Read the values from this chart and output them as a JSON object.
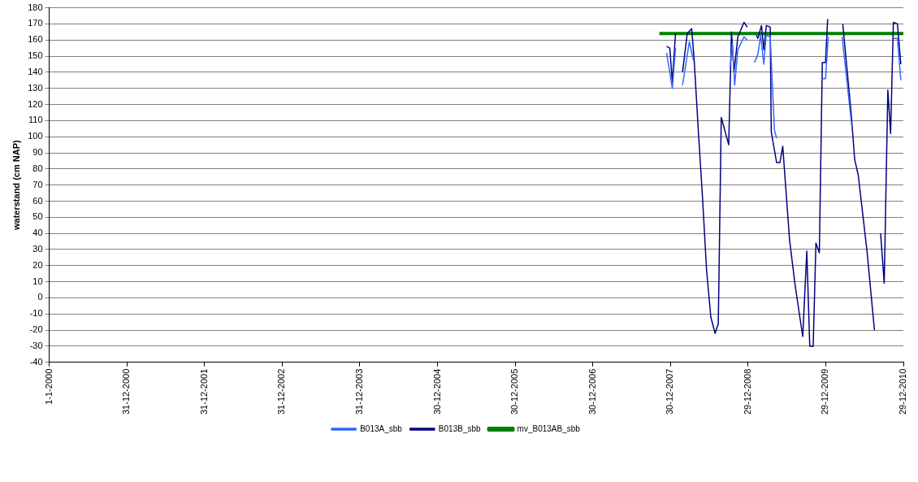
{
  "chart_data": {
    "type": "line",
    "ylabel": "waterstand (cm NAP)",
    "xlim": [
      "2000-01-01",
      "2010-12-29"
    ],
    "xticks": [
      {
        "value": "2000-01-01",
        "label": "1-1-2000"
      },
      {
        "value": "2000-12-31",
        "label": "31-12-2000"
      },
      {
        "value": "2001-12-31",
        "label": "31-12-2001"
      },
      {
        "value": "2002-12-31",
        "label": "31-12-2002"
      },
      {
        "value": "2003-12-31",
        "label": "31-12-2003"
      },
      {
        "value": "2004-12-30",
        "label": "30-12-2004"
      },
      {
        "value": "2005-12-30",
        "label": "30-12-2005"
      },
      {
        "value": "2006-12-30",
        "label": "30-12-2006"
      },
      {
        "value": "2007-12-30",
        "label": "30-12-2007"
      },
      {
        "value": "2008-12-29",
        "label": "29-12-2008"
      },
      {
        "value": "2009-12-29",
        "label": "29-12-2009"
      },
      {
        "value": "2010-12-29",
        "label": "29-12-2010"
      }
    ],
    "ylim": [
      -40,
      180
    ],
    "yticks": [
      -40,
      -30,
      -20,
      -10,
      0,
      10,
      20,
      30,
      40,
      50,
      60,
      70,
      80,
      90,
      100,
      110,
      120,
      130,
      140,
      150,
      160,
      170,
      180
    ],
    "grid": "y",
    "legend": "bottom",
    "marker": "none",
    "series": [
      {
        "name": "B013A_sbb",
        "color": "#3366ff",
        "x": [
          "2007-12-12",
          "2008-01-08",
          "2008-01-23",
          "2008-02-10",
          "2008-02-25",
          "2008-03-28",
          "2008-04-17",
          "2008-07-01",
          "2008-10-06",
          "2008-10-16",
          "2008-10-27",
          "2008-11-11",
          "2008-12-10",
          "2008-12-25",
          "2009-01-15",
          "2009-01-28",
          "2009-02-13",
          "2009-02-26",
          "2009-03-13",
          "2009-03-24",
          "2009-04-12",
          "2009-05-02",
          "2009-05-12",
          "2009-08-01",
          "2009-12-13",
          "2009-12-28",
          "2010-01-10",
          "2010-02-15",
          "2010-03-16",
          "2010-05-01",
          "2010-08-01",
          "2010-11-12",
          "2010-12-01",
          "2010-12-17"
        ],
        "values": [
          152,
          130,
          155,
          null,
          132,
          159,
          147,
          null,
          143,
          158,
          132,
          154,
          162,
          160,
          null,
          146,
          151,
          163,
          145,
          163,
          162,
          104,
          99,
          null,
          136,
          136,
          162,
          null,
          162,
          106,
          null,
          161,
          161,
          135
        ]
      },
      {
        "name": "B013B_sbb",
        "color": "#000080",
        "x": [
          "2007-12-12",
          "2007-12-27",
          "2008-01-08",
          "2008-01-23",
          "2008-02-10",
          "2008-02-25",
          "2008-03-18",
          "2008-04-08",
          "2008-04-20",
          "2008-05-09",
          "2008-05-29",
          "2008-06-17",
          "2008-07-07",
          "2008-07-27",
          "2008-08-11",
          "2008-08-25",
          "2008-09-29",
          "2008-10-12",
          "2008-10-24",
          "2008-11-11",
          "2008-12-10",
          "2008-12-25",
          "2009-01-15",
          "2009-02-06",
          "2009-02-13",
          "2009-03-02",
          "2009-03-13",
          "2009-03-25",
          "2009-04-12",
          "2009-04-17",
          "2009-05-12",
          "2009-05-28",
          "2009-06-10",
          "2009-07-12",
          "2009-08-07",
          "2009-09-12",
          "2009-10-01",
          "2009-10-15",
          "2009-10-31",
          "2009-11-13",
          "2009-11-29",
          "2009-12-13",
          "2009-12-28",
          "2010-01-07",
          "2010-02-15",
          "2010-03-19",
          "2010-04-28",
          "2010-05-14",
          "2010-05-31",
          "2010-07-11",
          "2010-08-15",
          "2010-08-30",
          "2010-09-13",
          "2010-09-30",
          "2010-10-17",
          "2010-10-30",
          "2010-11-12",
          "2010-12-01",
          "2010-12-17"
        ],
        "values": [
          156,
          155,
          134,
          164,
          null,
          140,
          164,
          167,
          147,
          104,
          62,
          17,
          -12,
          -22,
          -16,
          112,
          95,
          165,
          140,
          162,
          171,
          168,
          null,
          163,
          161,
          169,
          154,
          169,
          168,
          103,
          84,
          84,
          94,
          36,
          8,
          -24,
          29,
          -30,
          -30,
          34,
          28,
          146,
          146,
          173,
          null,
          170,
          114,
          86,
          76,
          29,
          -20,
          null,
          40,
          9,
          129,
          102,
          171,
          170,
          145
        ]
      },
      {
        "name": "mv_B013AB_sbb",
        "color": "#008000",
        "x": [
          "2007-11-08",
          "2010-12-29"
        ],
        "values": [
          164,
          164
        ]
      }
    ]
  }
}
